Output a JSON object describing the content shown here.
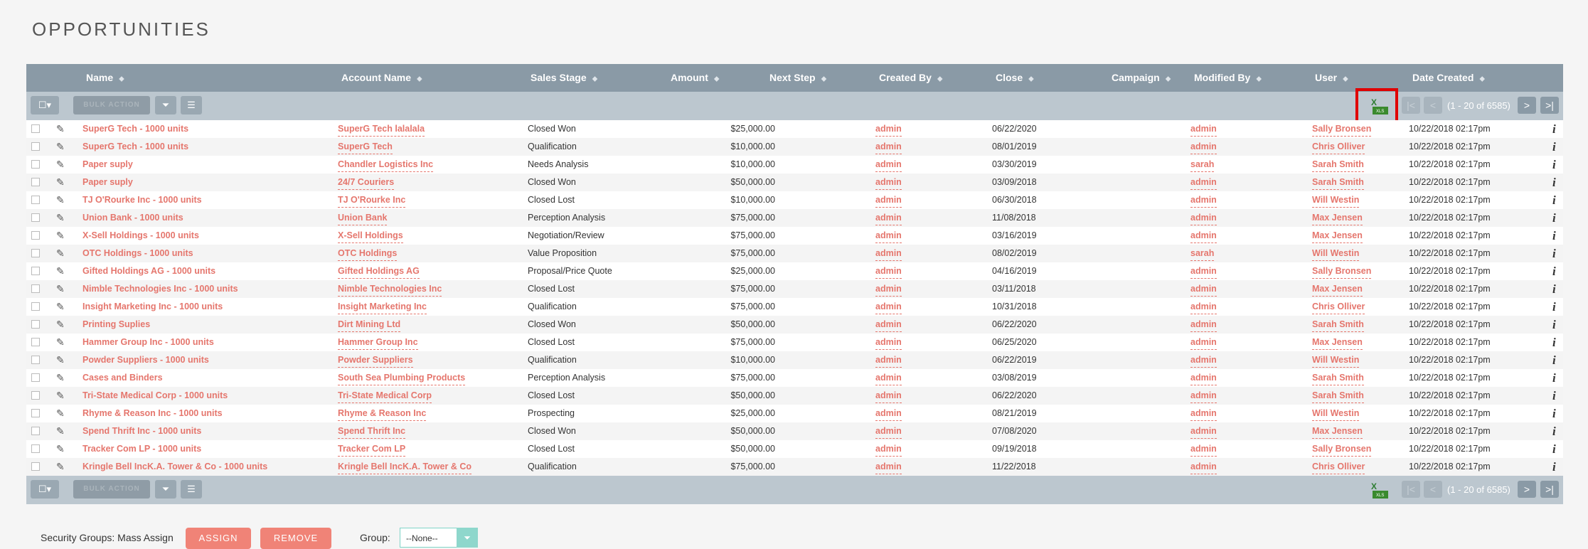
{
  "page": {
    "title": "OPPORTUNITIES"
  },
  "columns": [
    {
      "key": "name",
      "label": "Name"
    },
    {
      "key": "account",
      "label": "Account Name"
    },
    {
      "key": "stage",
      "label": "Sales Stage"
    },
    {
      "key": "amount",
      "label": "Amount"
    },
    {
      "key": "next_step",
      "label": "Next Step"
    },
    {
      "key": "created_by",
      "label": "Created By"
    },
    {
      "key": "close",
      "label": "Close"
    },
    {
      "key": "campaign",
      "label": "Campaign"
    },
    {
      "key": "modified_by",
      "label": "Modified By"
    },
    {
      "key": "user",
      "label": "User"
    },
    {
      "key": "date_created",
      "label": "Date Created"
    }
  ],
  "toolbar": {
    "bulk_action_label": "BULK ACTION",
    "pagination_text": "(1 - 20 of 6585)",
    "select_icon": "checkbox-dropdown-icon",
    "filter_icon": "filter-icon",
    "columns_icon": "column-chooser-icon",
    "export_icon": "excel-export-icon",
    "export_xls_text": "XLS",
    "export_letter": "X",
    "first_glyph": "|<",
    "prev_glyph": "<",
    "next_glyph": ">",
    "last_glyph": ">|"
  },
  "rows": [
    {
      "name": "SuperG Tech - 1000 units",
      "account": "SuperG Tech lalalala",
      "stage": "Closed Won",
      "amount": "$25,000.00",
      "created_by": "admin",
      "close": "06/22/2020",
      "modified_by": "admin",
      "user": "Sally Bronsen",
      "date_created": "10/22/2018 02:17pm"
    },
    {
      "name": "SuperG Tech - 1000 units",
      "account": "SuperG Tech",
      "stage": "Qualification",
      "amount": "$10,000.00",
      "created_by": "admin",
      "close": "08/01/2019",
      "modified_by": "admin",
      "user": "Chris Olliver",
      "date_created": "10/22/2018 02:17pm"
    },
    {
      "name": "Paper suply",
      "account": "Chandler Logistics Inc",
      "stage": "Needs Analysis",
      "amount": "$10,000.00",
      "created_by": "admin",
      "close": "03/30/2019",
      "modified_by": "sarah",
      "user": "Sarah Smith",
      "date_created": "10/22/2018 02:17pm"
    },
    {
      "name": "Paper suply",
      "account": "24/7 Couriers",
      "stage": "Closed Won",
      "amount": "$50,000.00",
      "created_by": "admin",
      "close": "03/09/2018",
      "modified_by": "admin",
      "user": "Sarah Smith",
      "date_created": "10/22/2018 02:17pm"
    },
    {
      "name": "TJ O'Rourke Inc - 1000 units",
      "account": "TJ O'Rourke Inc",
      "stage": "Closed Lost",
      "amount": "$10,000.00",
      "created_by": "admin",
      "close": "06/30/2018",
      "modified_by": "admin",
      "user": "Will Westin",
      "date_created": "10/22/2018 02:17pm"
    },
    {
      "name": "Union Bank - 1000 units",
      "account": "Union Bank",
      "stage": "Perception Analysis",
      "amount": "$75,000.00",
      "created_by": "admin",
      "close": "11/08/2018",
      "modified_by": "admin",
      "user": "Max Jensen",
      "date_created": "10/22/2018 02:17pm"
    },
    {
      "name": "X-Sell Holdings - 1000 units",
      "account": "X-Sell Holdings",
      "stage": "Negotiation/Review",
      "amount": "$75,000.00",
      "created_by": "admin",
      "close": "03/16/2019",
      "modified_by": "admin",
      "user": "Max Jensen",
      "date_created": "10/22/2018 02:17pm"
    },
    {
      "name": "OTC Holdings - 1000 units",
      "account": "OTC Holdings",
      "stage": "Value Proposition",
      "amount": "$75,000.00",
      "created_by": "admin",
      "close": "08/02/2019",
      "modified_by": "sarah",
      "user": "Will Westin",
      "date_created": "10/22/2018 02:17pm"
    },
    {
      "name": "Gifted Holdings AG - 1000 units",
      "account": "Gifted Holdings AG",
      "stage": "Proposal/Price Quote",
      "amount": "$25,000.00",
      "created_by": "admin",
      "close": "04/16/2019",
      "modified_by": "admin",
      "user": "Sally Bronsen",
      "date_created": "10/22/2018 02:17pm"
    },
    {
      "name": "Nimble Technologies Inc - 1000 units",
      "account": "Nimble Technologies Inc",
      "stage": "Closed Lost",
      "amount": "$75,000.00",
      "created_by": "admin",
      "close": "03/11/2018",
      "modified_by": "admin",
      "user": "Max Jensen",
      "date_created": "10/22/2018 02:17pm"
    },
    {
      "name": "Insight Marketing Inc - 1000 units",
      "account": "Insight Marketing Inc",
      "stage": "Qualification",
      "amount": "$75,000.00",
      "created_by": "admin",
      "close": "10/31/2018",
      "modified_by": "admin",
      "user": "Chris Olliver",
      "date_created": "10/22/2018 02:17pm"
    },
    {
      "name": "Printing Suplies",
      "account": "Dirt Mining Ltd",
      "stage": "Closed Won",
      "amount": "$50,000.00",
      "created_by": "admin",
      "close": "06/22/2020",
      "modified_by": "admin",
      "user": "Sarah Smith",
      "date_created": "10/22/2018 02:17pm"
    },
    {
      "name": "Hammer Group Inc - 1000 units",
      "account": "Hammer Group Inc",
      "stage": "Closed Lost",
      "amount": "$75,000.00",
      "created_by": "admin",
      "close": "06/25/2020",
      "modified_by": "admin",
      "user": "Max Jensen",
      "date_created": "10/22/2018 02:17pm"
    },
    {
      "name": "Powder Suppliers - 1000 units",
      "account": "Powder Suppliers",
      "stage": "Qualification",
      "amount": "$10,000.00",
      "created_by": "admin",
      "close": "06/22/2019",
      "modified_by": "admin",
      "user": "Will Westin",
      "date_created": "10/22/2018 02:17pm"
    },
    {
      "name": "Cases and Binders",
      "account": "South Sea Plumbing Products",
      "stage": "Perception Analysis",
      "amount": "$75,000.00",
      "created_by": "admin",
      "close": "03/08/2019",
      "modified_by": "admin",
      "user": "Sarah Smith",
      "date_created": "10/22/2018 02:17pm"
    },
    {
      "name": "Tri-State Medical Corp - 1000 units",
      "account": "Tri-State Medical Corp",
      "stage": "Closed Lost",
      "amount": "$50,000.00",
      "created_by": "admin",
      "close": "06/22/2020",
      "modified_by": "admin",
      "user": "Sarah Smith",
      "date_created": "10/22/2018 02:17pm"
    },
    {
      "name": "Rhyme & Reason Inc - 1000 units",
      "account": "Rhyme & Reason Inc",
      "stage": "Prospecting",
      "amount": "$25,000.00",
      "created_by": "admin",
      "close": "08/21/2019",
      "modified_by": "admin",
      "user": "Will Westin",
      "date_created": "10/22/2018 02:17pm"
    },
    {
      "name": "Spend Thrift Inc - 1000 units",
      "account": "Spend Thrift Inc",
      "stage": "Closed Won",
      "amount": "$50,000.00",
      "created_by": "admin",
      "close": "07/08/2020",
      "modified_by": "admin",
      "user": "Max Jensen",
      "date_created": "10/22/2018 02:17pm"
    },
    {
      "name": "Tracker Com LP - 1000 units",
      "account": "Tracker Com LP",
      "stage": "Closed Lost",
      "amount": "$50,000.00",
      "created_by": "admin",
      "close": "09/19/2018",
      "modified_by": "admin",
      "user": "Sally Bronsen",
      "date_created": "10/22/2018 02:17pm"
    },
    {
      "name": "Kringle Bell IncK.A. Tower & Co - 1000 units",
      "account": "Kringle Bell IncK.A. Tower & Co",
      "stage": "Qualification",
      "amount": "$75,000.00",
      "created_by": "admin",
      "close": "11/22/2018",
      "modified_by": "admin",
      "user": "Chris Olliver",
      "date_created": "10/22/2018 02:17pm"
    }
  ],
  "row_icons": {
    "edit": "pencil-icon",
    "info": "info-icon",
    "info_glyph": "i"
  },
  "security_groups": {
    "label": "Security Groups: Mass Assign",
    "assign_label": "ASSIGN",
    "remove_label": "REMOVE",
    "group_label": "Group:",
    "group_value": "--None--"
  },
  "colors": {
    "link": "#e5766d",
    "header_bg": "#8a9aa6",
    "toolbar_bg": "#bcc7cf",
    "highlight": "#e00000",
    "button": "#f08377"
  }
}
